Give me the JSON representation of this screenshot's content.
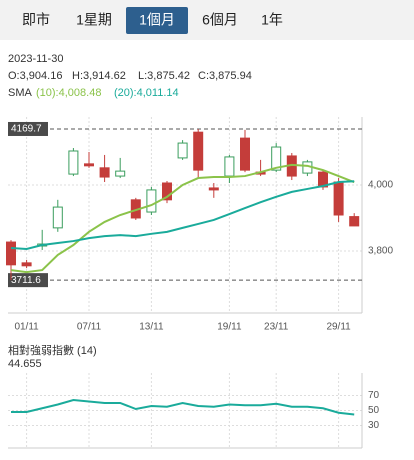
{
  "tabs": [
    "即市",
    "1星期",
    "1個月",
    "6個月",
    "1年"
  ],
  "active_tab": 2,
  "info": {
    "date": "2023-11-30",
    "ohlc": [
      "O:3,904.16",
      "H:3,914.62",
      "L:3,875.42",
      "C:3,875.94"
    ],
    "sma_label": "SMA"
  },
  "chart_data": [
    {
      "type": "candlestick",
      "categories": [
        null,
        "01/11",
        null,
        null,
        null,
        "07/11",
        null,
        null,
        null,
        "13/11",
        null,
        null,
        null,
        null,
        "19/11",
        null,
        null,
        "23/11",
        null,
        null,
        null,
        "29/11",
        null
      ],
      "open": [
        3827,
        3764,
        3815,
        3870,
        4033,
        4064,
        4052,
        4027,
        3955,
        3918,
        4006,
        4082,
        4160,
        3991,
        4027,
        4142,
        4039,
        4045,
        4088,
        4036,
        4039,
        4009,
        3904.16
      ],
      "high": [
        3833,
        3773,
        3864,
        3955,
        4112,
        4100,
        4091,
        4082,
        3961,
        3994,
        4012,
        4136,
        4169.7,
        4006,
        4091,
        4167,
        4076,
        4127,
        4097,
        4076,
        4045,
        4021,
        3914.62
      ],
      "low": [
        3711.6,
        3748,
        3803,
        3858,
        4027,
        4052,
        4009,
        4021,
        3894,
        3909,
        3945,
        4076,
        4021,
        3961,
        4006,
        4039,
        4027,
        4039,
        4015,
        4027,
        3985,
        3888,
        3875.42
      ],
      "close": [
        3758,
        3755,
        3821,
        3933,
        4103,
        4058,
        4024,
        4042,
        3900,
        3985,
        3955,
        4127,
        4045,
        3985,
        4085,
        4045,
        4033,
        4115,
        4027,
        4070,
        3994,
        3909,
        3875.94
      ],
      "up_color": "#3a9d5d",
      "down_color": "#c43d3a",
      "series": [
        {
          "name": "(10):4,008.48",
          "color": "#8bc34a",
          "values": [
            3742,
            3736,
            3742,
            3788,
            3818,
            3858,
            3888,
            3909,
            3924,
            3939,
            3964,
            4000,
            4021,
            4024,
            4024,
            4027,
            4039,
            4052,
            4061,
            4058,
            4045,
            4027,
            4008.48
          ]
        },
        {
          "name": "(20):4,011.14",
          "color": "#1aab9b",
          "values": [
            3809,
            3806,
            3818,
            3824,
            3830,
            3839,
            3845,
            3848,
            3845,
            3852,
            3858,
            3870,
            3882,
            3894,
            3912,
            3930,
            3948,
            3964,
            3979,
            3988,
            3997,
            4009,
            4011.14
          ]
        }
      ],
      "ylim": [
        3612,
        4206
      ],
      "yticks": [
        {
          "value": 3800,
          "label": "3,800"
        },
        {
          "value": 4000,
          "label": "4,000"
        }
      ],
      "annotations": [
        {
          "value": 4169.7
        },
        {
          "value": 3711.6
        }
      ],
      "grid": true
    },
    {
      "type": "line",
      "title": "相對強弱指數 (14)",
      "subtitle": "44.655",
      "color": "#1aab9b",
      "values": [
        48,
        48,
        53,
        58,
        64,
        62,
        60,
        60,
        52,
        56,
        55,
        60,
        56,
        55,
        58,
        57,
        57,
        59,
        55,
        55,
        53,
        47,
        44.655
      ],
      "ylim": [
        0,
        100
      ],
      "yticks": [
        30,
        50,
        70
      ],
      "grid": true
    }
  ]
}
